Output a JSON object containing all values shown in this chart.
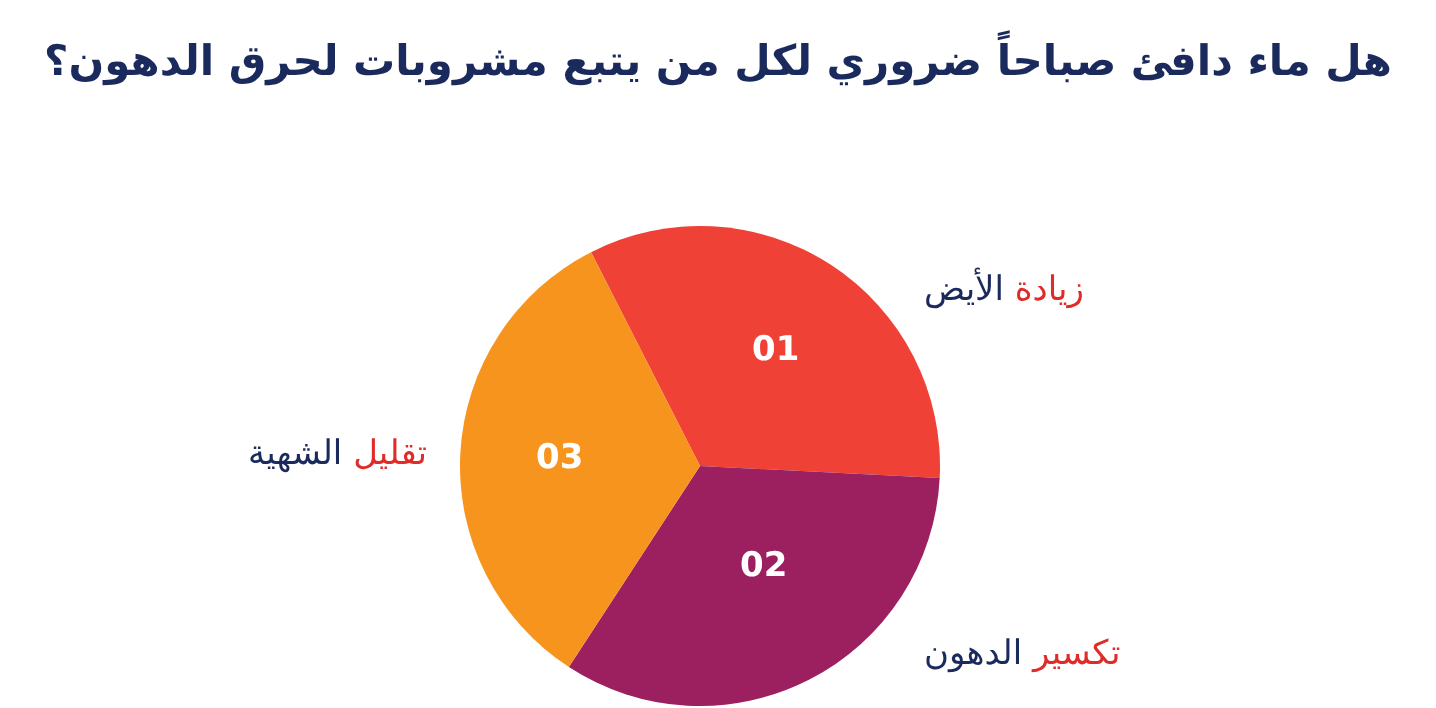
{
  "chart_data": {
    "type": "pie",
    "title": "هل ماء دافئ صباحاً ضروري لكل من يتبع مشروبات لحرق الدهون؟",
    "categories": [
      "زيادة الأيض",
      "تكسير الدهون",
      "تقليل الشهية"
    ],
    "values": [
      33.3,
      33.4,
      33.3
    ],
    "annotations": [
      "01",
      "02",
      "03"
    ],
    "colors": [
      "#ef4136",
      "#9c1f60",
      "#f7941d"
    ],
    "legend": false
  }
}
